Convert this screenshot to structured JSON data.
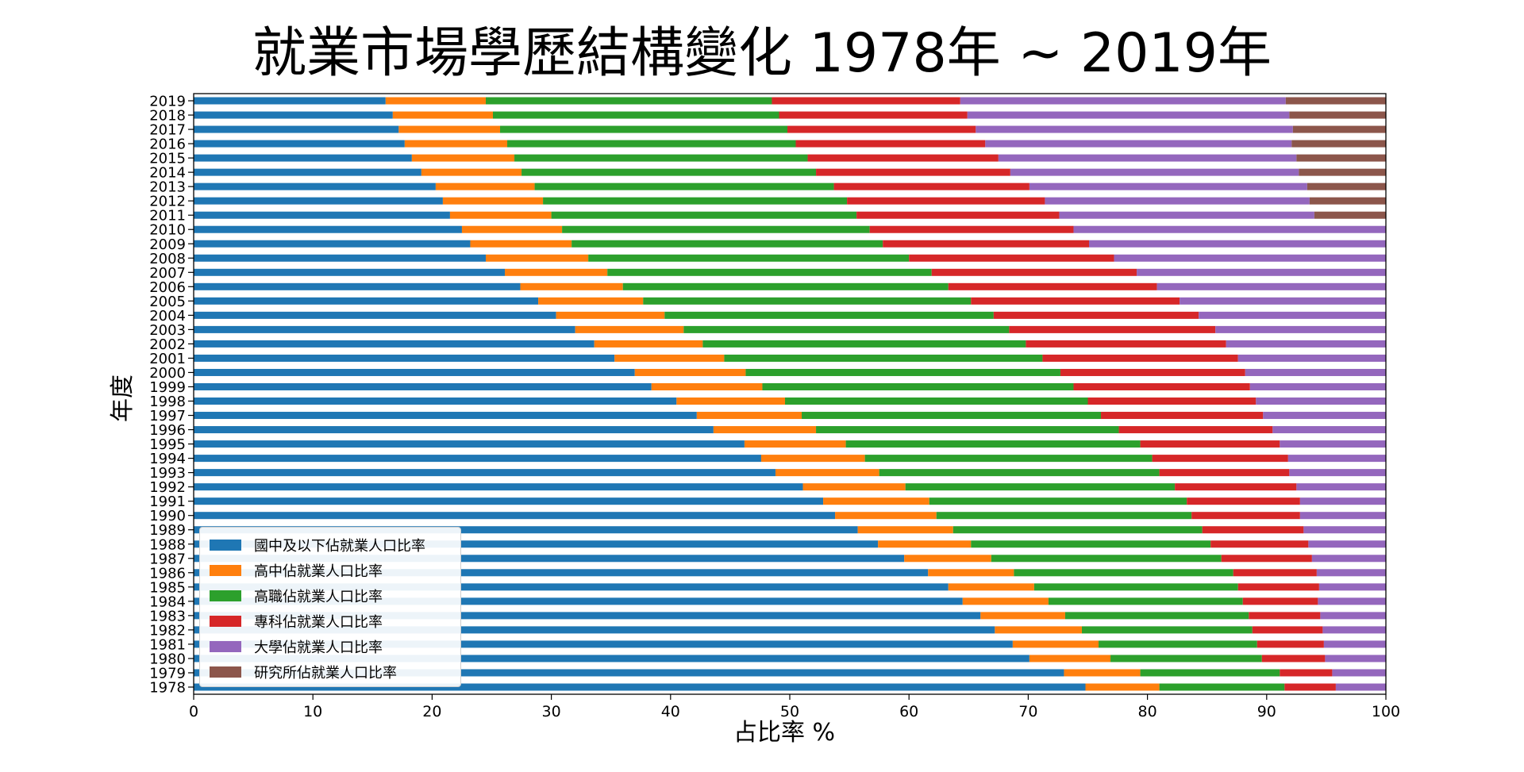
{
  "chart_data": {
    "type": "bar",
    "orientation": "horizontal",
    "stacked": true,
    "title": "就業市場學歷結構變化 1978年 ~ 2019年",
    "xlabel": "占比率 %",
    "ylabel": "年度",
    "xlim": [
      0,
      100
    ],
    "xticks": [
      0,
      10,
      20,
      30,
      40,
      50,
      60,
      70,
      80,
      90,
      100
    ],
    "grid": false,
    "legend_position": "lower-left",
    "categories": [
      "1978",
      "1979",
      "1980",
      "1981",
      "1982",
      "1983",
      "1984",
      "1985",
      "1986",
      "1987",
      "1988",
      "1989",
      "1990",
      "1991",
      "1992",
      "1993",
      "1994",
      "1995",
      "1996",
      "1997",
      "1998",
      "1999",
      "2000",
      "2001",
      "2002",
      "2003",
      "2004",
      "2005",
      "2006",
      "2007",
      "2008",
      "2009",
      "2010",
      "2011",
      "2012",
      "2013",
      "2014",
      "2015",
      "2016",
      "2017",
      "2018",
      "2019"
    ],
    "series": [
      {
        "name": "國中及以下佔就業人口比率",
        "color": "#1f77b4",
        "values": [
          74.8,
          73.0,
          70.1,
          68.7,
          67.2,
          66.0,
          64.5,
          63.3,
          61.6,
          59.6,
          57.4,
          55.7,
          53.8,
          52.8,
          51.1,
          48.8,
          47.6,
          46.2,
          43.6,
          42.2,
          40.5,
          38.4,
          37.0,
          35.3,
          33.6,
          32.0,
          30.4,
          28.9,
          27.4,
          26.1,
          24.5,
          23.2,
          22.5,
          21.5,
          20.9,
          20.3,
          19.1,
          18.3,
          17.7,
          17.2,
          16.7,
          16.1
        ]
      },
      {
        "name": "高中佔就業人口比率",
        "color": "#ff7f0e",
        "values": [
          6.2,
          6.4,
          6.8,
          7.2,
          7.3,
          7.1,
          7.2,
          7.2,
          7.2,
          7.3,
          7.8,
          8.0,
          8.5,
          8.9,
          8.6,
          8.7,
          8.7,
          8.5,
          8.6,
          8.8,
          9.1,
          9.3,
          9.3,
          9.2,
          9.1,
          9.1,
          9.1,
          8.8,
          8.6,
          8.6,
          8.6,
          8.5,
          8.4,
          8.5,
          8.4,
          8.3,
          8.4,
          8.6,
          8.6,
          8.5,
          8.4,
          8.4
        ]
      },
      {
        "name": "高職佔就業人口比率",
        "color": "#2ca02c",
        "values": [
          10.5,
          11.7,
          12.7,
          13.3,
          14.3,
          15.4,
          16.3,
          17.1,
          18.4,
          19.3,
          20.1,
          20.9,
          21.4,
          21.6,
          22.6,
          23.5,
          24.1,
          24.7,
          25.4,
          25.1,
          25.4,
          26.1,
          26.4,
          26.7,
          27.1,
          27.3,
          27.6,
          27.5,
          27.3,
          27.2,
          26.9,
          26.1,
          25.8,
          25.6,
          25.5,
          25.1,
          24.7,
          24.6,
          24.2,
          24.1,
          24.0,
          24.0
        ]
      },
      {
        "name": "專科佔就業人口比率",
        "color": "#d62728",
        "values": [
          4.3,
          4.4,
          5.3,
          5.6,
          5.9,
          6.0,
          6.3,
          6.8,
          7.0,
          7.6,
          8.2,
          8.5,
          9.1,
          9.5,
          10.2,
          10.9,
          11.4,
          11.7,
          12.9,
          13.6,
          14.1,
          14.8,
          15.5,
          16.4,
          16.8,
          17.3,
          17.2,
          17.5,
          17.5,
          17.2,
          17.2,
          17.3,
          17.1,
          17.0,
          16.6,
          16.4,
          16.3,
          16.0,
          15.9,
          15.8,
          15.8,
          15.8
        ]
      },
      {
        "name": "大學佔就業人口比率",
        "color": "#9467bd",
        "values": [
          4.2,
          4.5,
          5.1,
          5.2,
          5.3,
          5.5,
          5.7,
          5.6,
          5.8,
          6.2,
          6.5,
          6.9,
          7.2,
          7.2,
          7.5,
          8.1,
          8.2,
          8.9,
          9.5,
          10.3,
          10.9,
          11.4,
          11.8,
          12.4,
          13.4,
          14.3,
          15.7,
          17.3,
          19.2,
          20.9,
          22.8,
          24.9,
          26.2,
          21.4,
          22.2,
          23.3,
          24.2,
          25.0,
          25.7,
          26.6,
          27.0,
          27.3
        ]
      },
      {
        "name": "研究所佔就業人口比率",
        "color": "#8c564b",
        "values": [
          0,
          0,
          0,
          0,
          0,
          0,
          0,
          0,
          0,
          0,
          0,
          0,
          0,
          0,
          0,
          0,
          0,
          0,
          0,
          0,
          0,
          0,
          0,
          0,
          0,
          0,
          0,
          0,
          0,
          0,
          0,
          0,
          0,
          6.0,
          6.4,
          6.6,
          7.3,
          7.5,
          7.9,
          7.8,
          8.1,
          8.4
        ]
      }
    ]
  }
}
